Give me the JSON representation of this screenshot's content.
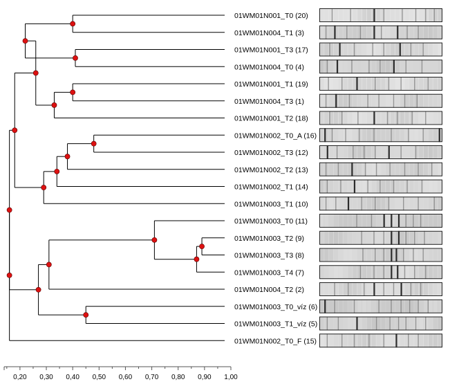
{
  "dendrogram": {
    "leaves": [
      {
        "label": "01WM01N001_T0 (20)"
      },
      {
        "label": "01WM01N004_T1 (3)"
      },
      {
        "label": "01WM01N001_T3 (17)"
      },
      {
        "label": "01WM01N004_T0 (4)"
      },
      {
        "label": "01WM01N001_T1 (19)"
      },
      {
        "label": "01WM01N004_T3 (1)"
      },
      {
        "label": "01WM01N001_T2 (18)"
      },
      {
        "label": "01WM01N002_T0_A (16)"
      },
      {
        "label": "01WM01N002_T3 (12)"
      },
      {
        "label": "01WM01N002_T2 (13)"
      },
      {
        "label": "01WM01N002_T1 (14)"
      },
      {
        "label": "01WM01N003_T1 (10)"
      },
      {
        "label": "01WM01N003_T0 (11)"
      },
      {
        "label": "01WM01N003_T2 (9)"
      },
      {
        "label": "01WM01N003_T3 (8)"
      },
      {
        "label": "01WM01N003_T4 (7)"
      },
      {
        "label": "01WM01N004_T2 (2)"
      },
      {
        "label": "01WM01N003_T0_víz (6)"
      },
      {
        "label": "01WM01N003_T1_víz (5)"
      },
      {
        "label": "01WM01N002_T0_F (15)"
      }
    ],
    "merges": [
      {
        "id": "m1",
        "value": 0.4,
        "children": [
          "L0",
          "L1"
        ]
      },
      {
        "id": "m2",
        "value": 0.41,
        "children": [
          "L2",
          "L3"
        ]
      },
      {
        "id": "m3",
        "value": 0.22,
        "children": [
          "m1",
          "m2"
        ]
      },
      {
        "id": "m4",
        "value": 0.4,
        "children": [
          "L4",
          "L5"
        ]
      },
      {
        "id": "m5",
        "value": 0.33,
        "children": [
          "m4",
          "L6"
        ]
      },
      {
        "id": "m6",
        "value": 0.26,
        "children": [
          "m3",
          "m5"
        ]
      },
      {
        "id": "m7",
        "value": 0.48,
        "children": [
          "L7",
          "L8"
        ]
      },
      {
        "id": "m8",
        "value": 0.38,
        "children": [
          "m7",
          "L9"
        ]
      },
      {
        "id": "m9",
        "value": 0.34,
        "children": [
          "m8",
          "L10"
        ]
      },
      {
        "id": "m10",
        "value": 0.29,
        "children": [
          "m9",
          "L11"
        ]
      },
      {
        "id": "m11",
        "value": 0.18,
        "children": [
          "m6",
          "m10"
        ]
      },
      {
        "id": "m12",
        "value": 0.89,
        "children": [
          "L13",
          "L14"
        ]
      },
      {
        "id": "m13",
        "value": 0.87,
        "children": [
          "m12",
          "L15"
        ]
      },
      {
        "id": "m14",
        "value": 0.71,
        "children": [
          "L12",
          "m13"
        ]
      },
      {
        "id": "m15",
        "value": 0.31,
        "children": [
          "m14",
          "L16"
        ]
      },
      {
        "id": "m16",
        "value": 0.45,
        "children": [
          "L17",
          "L18"
        ]
      },
      {
        "id": "m17",
        "value": 0.27,
        "children": [
          "m15",
          "m16"
        ]
      },
      {
        "id": "m18",
        "value": 0.16,
        "children": [
          "m11",
          "m17"
        ]
      },
      {
        "id": "m19",
        "value": 0.16,
        "children": [
          "m18",
          "L19"
        ]
      }
    ],
    "node_color": "#dd1111",
    "line_color": "#000000"
  },
  "axis": {
    "min": 0.14,
    "max": 1.0,
    "ticks": [
      "0,20",
      "0,30",
      "0,40",
      "0,50",
      "0,60",
      "0,70",
      "0,80",
      "0,90",
      "1,00"
    ],
    "tick_values": [
      0.2,
      0.3,
      0.4,
      0.5,
      0.6,
      0.7,
      0.8,
      0.9,
      1.0
    ]
  },
  "gel_lanes": [
    {
      "bands": [
        0.1,
        0.25,
        0.44,
        0.52,
        0.67,
        0.78,
        0.86,
        0.93
      ],
      "dark": [
        0.44
      ],
      "bg": 0.22
    },
    {
      "bands": [
        0.05,
        0.12,
        0.22,
        0.33,
        0.44,
        0.5,
        0.63,
        0.71,
        0.8
      ],
      "dark": [
        0.12,
        0.44,
        0.63
      ],
      "bg": 0.32
    },
    {
      "bands": [
        0.08,
        0.16,
        0.28,
        0.43,
        0.52,
        0.65,
        0.74,
        0.84
      ],
      "dark": [
        0.16,
        0.65
      ],
      "bg": 0.26
    },
    {
      "bands": [
        0.06,
        0.14,
        0.26,
        0.4,
        0.49,
        0.6,
        0.7,
        0.83
      ],
      "dark": [
        0.14,
        0.6
      ],
      "bg": 0.34
    },
    {
      "bands": [
        0.07,
        0.18,
        0.3,
        0.45,
        0.56,
        0.66,
        0.77,
        0.88
      ],
      "dark": [
        0.3
      ],
      "bg": 0.24
    },
    {
      "bands": [
        0.05,
        0.13,
        0.24,
        0.39,
        0.48,
        0.6,
        0.69,
        0.79
      ],
      "dark": [
        0.13
      ],
      "bg": 0.28
    },
    {
      "bands": [
        0.08,
        0.18,
        0.31,
        0.44,
        0.55,
        0.63,
        0.75,
        0.86
      ],
      "dark": [
        0.44
      ],
      "bg": 0.24
    },
    {
      "bands": [
        0.04,
        0.1,
        0.21,
        0.32,
        0.44,
        0.58,
        0.72,
        0.84,
        0.97
      ],
      "dark": [
        0.04,
        0.97
      ],
      "bg": 0.3
    },
    {
      "bands": [
        0.06,
        0.14,
        0.27,
        0.36,
        0.45,
        0.56,
        0.66,
        0.78
      ],
      "dark": [
        0.06,
        0.56
      ],
      "bg": 0.3
    },
    {
      "bands": [
        0.05,
        0.15,
        0.26,
        0.37,
        0.46,
        0.57,
        0.69,
        0.8,
        0.91
      ],
      "dark": [
        0.26
      ],
      "bg": 0.3
    },
    {
      "bands": [
        0.06,
        0.17,
        0.28,
        0.39,
        0.49,
        0.6,
        0.71,
        0.83
      ],
      "dark": [
        0.28
      ],
      "bg": 0.28
    },
    {
      "bands": [
        0.05,
        0.13,
        0.23,
        0.34,
        0.45,
        0.56,
        0.68,
        0.8,
        0.93
      ],
      "dark": [
        0.23
      ],
      "bg": 0.3
    },
    {
      "bands": [
        0.3,
        0.42,
        0.52,
        0.58,
        0.64,
        0.7,
        0.76,
        0.82
      ],
      "dark": [
        0.52,
        0.58,
        0.64
      ],
      "bg": 0.36
    },
    {
      "bands": [
        0.34,
        0.44,
        0.52,
        0.58,
        0.64,
        0.7,
        0.77,
        0.85
      ],
      "dark": [
        0.58,
        0.64
      ],
      "bg": 0.32
    },
    {
      "bands": [
        0.35,
        0.45,
        0.52,
        0.58,
        0.62,
        0.68,
        0.76,
        0.84
      ],
      "dark": [
        0.58,
        0.62
      ],
      "bg": 0.32
    },
    {
      "bands": [
        0.33,
        0.44,
        0.52,
        0.58,
        0.63,
        0.69,
        0.77,
        0.86
      ],
      "dark": [
        0.58,
        0.63
      ],
      "bg": 0.3
    },
    {
      "bands": [
        0.12,
        0.23,
        0.36,
        0.44,
        0.52,
        0.6,
        0.66,
        0.74,
        0.82
      ],
      "dark": [
        0.44,
        0.66
      ],
      "bg": 0.26
    },
    {
      "bands": [
        0.04,
        0.12,
        0.28,
        0.48,
        0.58,
        0.66,
        0.73,
        0.8,
        0.88
      ],
      "dark": [
        0.04
      ],
      "bg": 0.38
    },
    {
      "bands": [
        0.06,
        0.15,
        0.3,
        0.46,
        0.57,
        0.64,
        0.7,
        0.78,
        0.86
      ],
      "dark": [
        0.3
      ],
      "bg": 0.34
    },
    {
      "bands": [
        0.06,
        0.18,
        0.28,
        0.4,
        0.52,
        0.62,
        0.72,
        0.8
      ],
      "dark": [
        0.62
      ],
      "bg": 0.26
    }
  ]
}
